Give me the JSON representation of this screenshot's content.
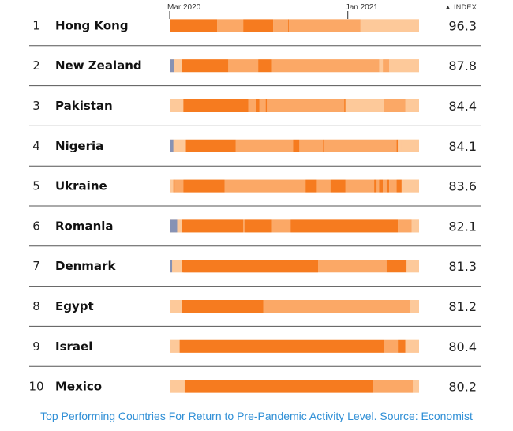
{
  "caption": "Top Performing Countries For Return to Pre-Pandemic Activity Level. Source: Economist",
  "colors": {
    "deep": "#f67b1f",
    "mid": "#fba866",
    "light": "#fdc99a",
    "ref": "#8792b4",
    "rule": "#555555",
    "caption": "#2f8fd6"
  },
  "chart_data": {
    "type": "table",
    "x_axis": {
      "start": "2020-03",
      "end": "2021-05",
      "ticks": [
        {
          "label": "Mar 2020",
          "date": "2020-03"
        },
        {
          "label": "Jan 2021",
          "date": "2021-01"
        }
      ]
    },
    "value_header": "▲ INDEX",
    "level_legend": [
      "deep",
      "mid",
      "light",
      "ref"
    ],
    "rows": [
      {
        "rank": "1",
        "country": "Hong Kong",
        "index": "96.3",
        "segments": [
          [
            0.0,
            0.19,
            "deep"
          ],
          [
            0.19,
            0.295,
            "mid"
          ],
          [
            0.295,
            0.415,
            "deep"
          ],
          [
            0.415,
            0.475,
            "mid"
          ],
          [
            0.475,
            0.478,
            "deep"
          ],
          [
            0.478,
            0.765,
            "mid"
          ],
          [
            0.765,
            1.0,
            "light"
          ]
        ]
      },
      {
        "rank": "2",
        "country": "New Zealand",
        "index": "87.8",
        "segments": [
          [
            0.0,
            0.018,
            "ref"
          ],
          [
            0.018,
            0.05,
            "light"
          ],
          [
            0.05,
            0.235,
            "deep"
          ],
          [
            0.235,
            0.355,
            "mid"
          ],
          [
            0.355,
            0.41,
            "deep"
          ],
          [
            0.41,
            0.84,
            "mid"
          ],
          [
            0.84,
            0.855,
            "light"
          ],
          [
            0.855,
            0.88,
            "mid"
          ],
          [
            0.88,
            1.0,
            "light"
          ]
        ]
      },
      {
        "rank": "3",
        "country": "Pakistan",
        "index": "84.4",
        "segments": [
          [
            0.0,
            0.055,
            "light"
          ],
          [
            0.055,
            0.315,
            "deep"
          ],
          [
            0.315,
            0.345,
            "mid"
          ],
          [
            0.345,
            0.36,
            "deep"
          ],
          [
            0.36,
            0.385,
            "mid"
          ],
          [
            0.385,
            0.39,
            "deep"
          ],
          [
            0.39,
            0.7,
            "mid"
          ],
          [
            0.7,
            0.705,
            "deep"
          ],
          [
            0.705,
            0.86,
            "light"
          ],
          [
            0.86,
            0.945,
            "mid"
          ],
          [
            0.945,
            1.0,
            "light"
          ]
        ]
      },
      {
        "rank": "4",
        "country": "Nigeria",
        "index": "84.1",
        "segments": [
          [
            0.0,
            0.015,
            "ref"
          ],
          [
            0.015,
            0.065,
            "light"
          ],
          [
            0.065,
            0.265,
            "deep"
          ],
          [
            0.265,
            0.495,
            "mid"
          ],
          [
            0.495,
            0.52,
            "deep"
          ],
          [
            0.52,
            0.615,
            "mid"
          ],
          [
            0.615,
            0.62,
            "deep"
          ],
          [
            0.62,
            0.91,
            "mid"
          ],
          [
            0.91,
            0.915,
            "deep"
          ],
          [
            0.915,
            0.93,
            "light"
          ],
          [
            0.93,
            1.0,
            "light"
          ]
        ]
      },
      {
        "rank": "5",
        "country": "Ukraine",
        "index": "83.6",
        "segments": [
          [
            0.0,
            0.015,
            "light"
          ],
          [
            0.015,
            0.02,
            "deep"
          ],
          [
            0.02,
            0.055,
            "mid"
          ],
          [
            0.055,
            0.22,
            "deep"
          ],
          [
            0.22,
            0.545,
            "mid"
          ],
          [
            0.545,
            0.59,
            "deep"
          ],
          [
            0.59,
            0.645,
            "mid"
          ],
          [
            0.645,
            0.705,
            "deep"
          ],
          [
            0.705,
            0.82,
            "mid"
          ],
          [
            0.82,
            0.83,
            "deep"
          ],
          [
            0.83,
            0.84,
            "mid"
          ],
          [
            0.84,
            0.855,
            "deep"
          ],
          [
            0.855,
            0.87,
            "mid"
          ],
          [
            0.87,
            0.88,
            "deep"
          ],
          [
            0.88,
            0.91,
            "mid"
          ],
          [
            0.91,
            0.93,
            "deep"
          ],
          [
            0.93,
            1.0,
            "light"
          ]
        ]
      },
      {
        "rank": "6",
        "country": "Romania",
        "index": "82.1",
        "segments": [
          [
            0.0,
            0.03,
            "ref"
          ],
          [
            0.03,
            0.05,
            "light"
          ],
          [
            0.05,
            0.295,
            "deep"
          ],
          [
            0.295,
            0.3,
            "mid"
          ],
          [
            0.3,
            0.41,
            "deep"
          ],
          [
            0.41,
            0.485,
            "mid"
          ],
          [
            0.485,
            0.915,
            "deep"
          ],
          [
            0.915,
            0.97,
            "mid"
          ],
          [
            0.97,
            1.0,
            "light"
          ]
        ]
      },
      {
        "rank": "7",
        "country": "Denmark",
        "index": "81.3",
        "segments": [
          [
            0.0,
            0.01,
            "ref"
          ],
          [
            0.01,
            0.05,
            "light"
          ],
          [
            0.05,
            0.595,
            "deep"
          ],
          [
            0.595,
            0.595,
            "mid"
          ],
          [
            0.595,
            0.595,
            "deep"
          ],
          [
            0.055,
            0.595,
            "deep"
          ],
          [
            0.595,
            0.87,
            "mid"
          ],
          [
            0.87,
            0.95,
            "deep"
          ],
          [
            0.95,
            1.0,
            "light"
          ]
        ]
      },
      {
        "rank": "8",
        "country": "Egypt",
        "index": "81.2",
        "segments": [
          [
            0.0,
            0.05,
            "light"
          ],
          [
            0.05,
            0.375,
            "deep"
          ],
          [
            0.375,
            0.965,
            "mid"
          ],
          [
            0.965,
            1.0,
            "light"
          ]
        ]
      },
      {
        "rank": "9",
        "country": "Israel",
        "index": "80.4",
        "segments": [
          [
            0.0,
            0.04,
            "light"
          ],
          [
            0.04,
            0.86,
            "deep"
          ],
          [
            0.86,
            0.915,
            "mid"
          ],
          [
            0.915,
            0.945,
            "deep"
          ],
          [
            0.945,
            1.0,
            "light"
          ]
        ]
      },
      {
        "rank": "10",
        "country": "Mexico",
        "index": "80.2",
        "segments": [
          [
            0.0,
            0.06,
            "light"
          ],
          [
            0.06,
            0.815,
            "deep"
          ],
          [
            0.815,
            0.975,
            "mid"
          ],
          [
            0.975,
            1.0,
            "light"
          ]
        ]
      }
    ]
  }
}
